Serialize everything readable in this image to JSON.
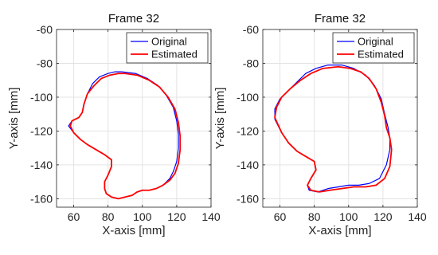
{
  "chart_data": [
    {
      "type": "line",
      "title": "Frame 32",
      "xlabel": "X-axis [mm]",
      "ylabel": "Y-axis [mm]",
      "xlim": [
        50,
        140
      ],
      "ylim": [
        -165,
        -60
      ],
      "xticks": [
        60,
        80,
        100,
        120,
        140
      ],
      "yticks": [
        -60,
        -80,
        -100,
        -120,
        -140,
        -160
      ],
      "grid": true,
      "legend": {
        "placement": "top-right"
      },
      "series": [
        {
          "name": "Original",
          "color": "#0000ff",
          "x": [
            88,
            96,
            103,
            109,
            114,
            118,
            120,
            121,
            121,
            120,
            118,
            116,
            112,
            108,
            104,
            100,
            97,
            94,
            90,
            86,
            82,
            79,
            78,
            78,
            80,
            82,
            82,
            78,
            73,
            68,
            64,
            60,
            57,
            59,
            63,
            65,
            66,
            68,
            71,
            75,
            80,
            84,
            88
          ],
          "y": [
            -85,
            -86,
            -89,
            -93,
            -99,
            -106,
            -114,
            -122,
            -130,
            -138,
            -144,
            -148,
            -152,
            -154,
            -155,
            -155,
            -156,
            -158,
            -159,
            -160,
            -159,
            -157,
            -154,
            -150,
            -146,
            -141,
            -137,
            -134,
            -131,
            -128,
            -125,
            -121,
            -117,
            -114,
            -112,
            -109,
            -104,
            -98,
            -92,
            -88,
            -86,
            -85,
            -85
          ]
        },
        {
          "name": "Estimated",
          "color": "#ff0000",
          "x": [
            90,
            97,
            104,
            110,
            115,
            119,
            121,
            122,
            122,
            121,
            119,
            116,
            112,
            108,
            104,
            100,
            97,
            94,
            90,
            86,
            82,
            79,
            78,
            78,
            80,
            82,
            82,
            78,
            73,
            68,
            64,
            60,
            58,
            59,
            63,
            65,
            66,
            68,
            72,
            76,
            81,
            86,
            90
          ],
          "y": [
            -86,
            -87,
            -90,
            -94,
            -100,
            -107,
            -115,
            -123,
            -131,
            -139,
            -145,
            -149,
            -152,
            -154,
            -155,
            -155,
            -156,
            -158,
            -159,
            -160,
            -159,
            -157,
            -154,
            -150,
            -146,
            -141,
            -137,
            -134,
            -131,
            -128,
            -125,
            -121,
            -117,
            -114,
            -112,
            -109,
            -104,
            -98,
            -93,
            -89,
            -87,
            -86,
            -86
          ]
        }
      ]
    },
    {
      "type": "line",
      "title": "Frame 32",
      "xlabel": "X-axis [mm]",
      "ylabel": "Y-axis [mm]",
      "xlim": [
        50,
        140
      ],
      "ylim": [
        -165,
        -60
      ],
      "xticks": [
        60,
        80,
        100,
        120,
        140
      ],
      "yticks": [
        -60,
        -80,
        -100,
        -120,
        -140,
        -160
      ],
      "grid": true,
      "legend": {
        "placement": "top-right"
      },
      "series": [
        {
          "name": "Original",
          "color": "#0000ff",
          "x": [
            88,
            96,
            103,
            110,
            115,
            119,
            121,
            123,
            124,
            124,
            122,
            118,
            112,
            106,
            100,
            94,
            88,
            82,
            77,
            76,
            78,
            81,
            80,
            75,
            70,
            65,
            61,
            57,
            57,
            60,
            65,
            70,
            75,
            81,
            88
          ],
          "y": [
            -81,
            -81,
            -83,
            -87,
            -93,
            -101,
            -110,
            -118,
            -124,
            -131,
            -140,
            -148,
            -151,
            -152,
            -152,
            -153,
            -154,
            -156,
            -155,
            -152,
            -148,
            -143,
            -138,
            -135,
            -132,
            -127,
            -121,
            -113,
            -107,
            -101,
            -96,
            -91,
            -86,
            -83,
            -81
          ]
        },
        {
          "name": "Estimated",
          "color": "#ff0000",
          "x": [
            94,
            101,
            107,
            112,
            116,
            119,
            121,
            122,
            124,
            125,
            124,
            121,
            116,
            110,
            103,
            96,
            89,
            83,
            78,
            76,
            78,
            81,
            80,
            75,
            70,
            65,
            61,
            57,
            58,
            61,
            66,
            72,
            78,
            85,
            94
          ],
          "y": [
            -82,
            -83,
            -85,
            -89,
            -95,
            -103,
            -111,
            -118,
            -124,
            -131,
            -141,
            -148,
            -152,
            -153,
            -153,
            -154,
            -155,
            -156,
            -155,
            -152,
            -148,
            -143,
            -138,
            -135,
            -132,
            -127,
            -121,
            -112,
            -106,
            -100,
            -95,
            -90,
            -86,
            -83,
            -82
          ]
        }
      ]
    }
  ]
}
